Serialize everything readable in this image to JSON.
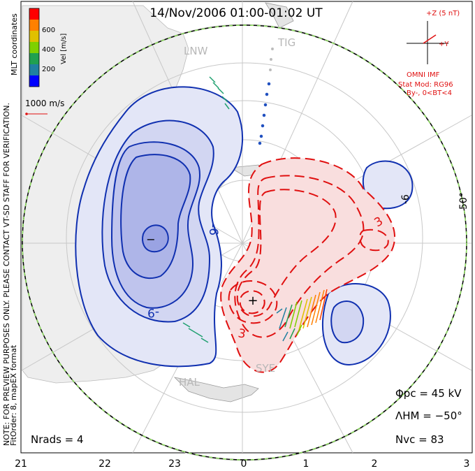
{
  "title": "14/Nov/2006 01:00-01:02 UT",
  "coords_label": "MLT coordinates",
  "velocity_scale": {
    "label": "Vel [m/s]",
    "ticks": [
      "600",
      "400",
      "200"
    ],
    "colors": [
      "#ff0000",
      "#ff8000",
      "#e0c000",
      "#7fd000",
      "#20a050",
      "#2080a0",
      "#0000ff"
    ]
  },
  "vector_scale_label": "1000 m/s",
  "imf": {
    "bz_label": "+Z (5 nT)",
    "by_label": "+Y",
    "source": "OMNI IMF",
    "model": "Stat Mod: RG96",
    "condition": "By-, 0<BT<4"
  },
  "note": "NOTE: FOR PREVIEW PURPOSES ONLY. PLEASE CONTACT VT-SD STAFF FOR VERIFICATION.",
  "fitorder": "FitOrder: 8, mapEX format",
  "stations": {
    "left_top": "LNW",
    "right_top": "TIG",
    "bottom": "SYE",
    "left_bottom": "HAL"
  },
  "contour_labels": {
    "minus6": "-6",
    "minus9": "-9",
    "plus3_a": "3",
    "plus3_b": "3",
    "minus6_b": "-6",
    "min_marker": "−",
    "max_marker": "+"
  },
  "lat_label": "50°",
  "stats": {
    "phi_pc": "Φpc = 45 kV",
    "lambda_hm": "ΛHM = −50°",
    "n_vc": "Nvc = 83",
    "n_rads": "Nrads = 4"
  },
  "mlt_ticks": [
    "21",
    "22",
    "23",
    "0",
    "1",
    "2",
    "3"
  ],
  "colors": {
    "negative": "#1030b0",
    "positive": "#e01010",
    "grid": "#c8c8c8",
    "land": "#d8d8d8"
  }
}
